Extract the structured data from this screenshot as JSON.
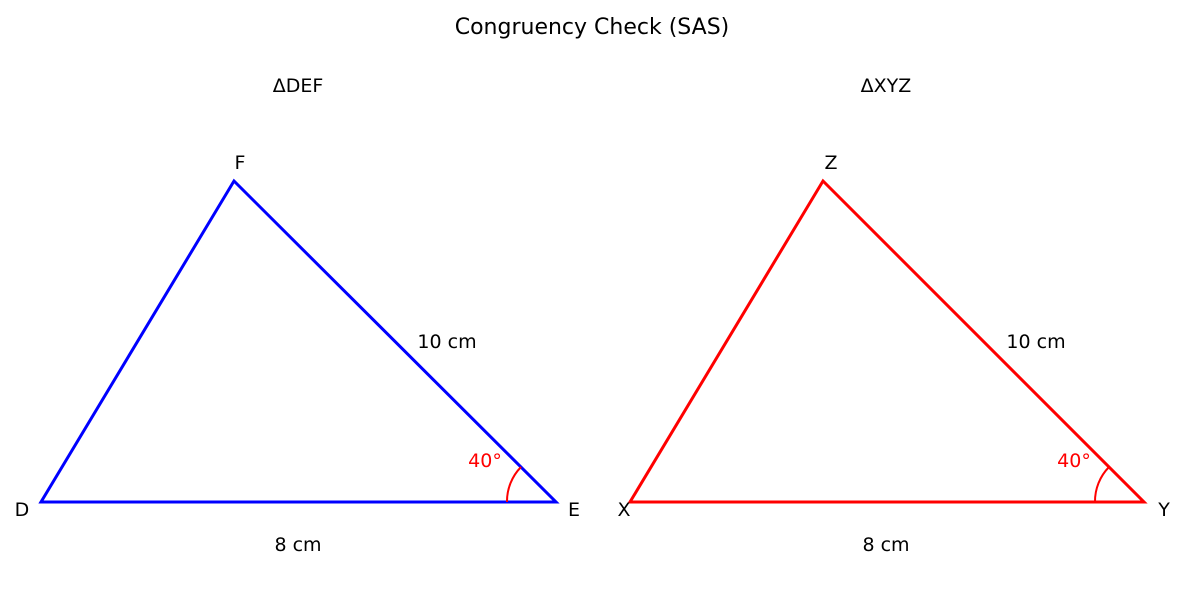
{
  "title": "Congruency Check (SAS)",
  "left": {
    "title": "ΔDEF",
    "color": "#0000ff",
    "vertices": {
      "a": "D",
      "b": "E",
      "apex": "F"
    },
    "base_length": "8 cm",
    "side_length": "10 cm",
    "angle": "40°",
    "angle_color": "#ff0000"
  },
  "right": {
    "title": "ΔXYZ",
    "color": "#ff0000",
    "vertices": {
      "a": "X",
      "b": "Y",
      "apex": "Z"
    },
    "base_length": "8 cm",
    "side_length": "10 cm",
    "angle": "40°",
    "angle_color": "#ff0000"
  }
}
